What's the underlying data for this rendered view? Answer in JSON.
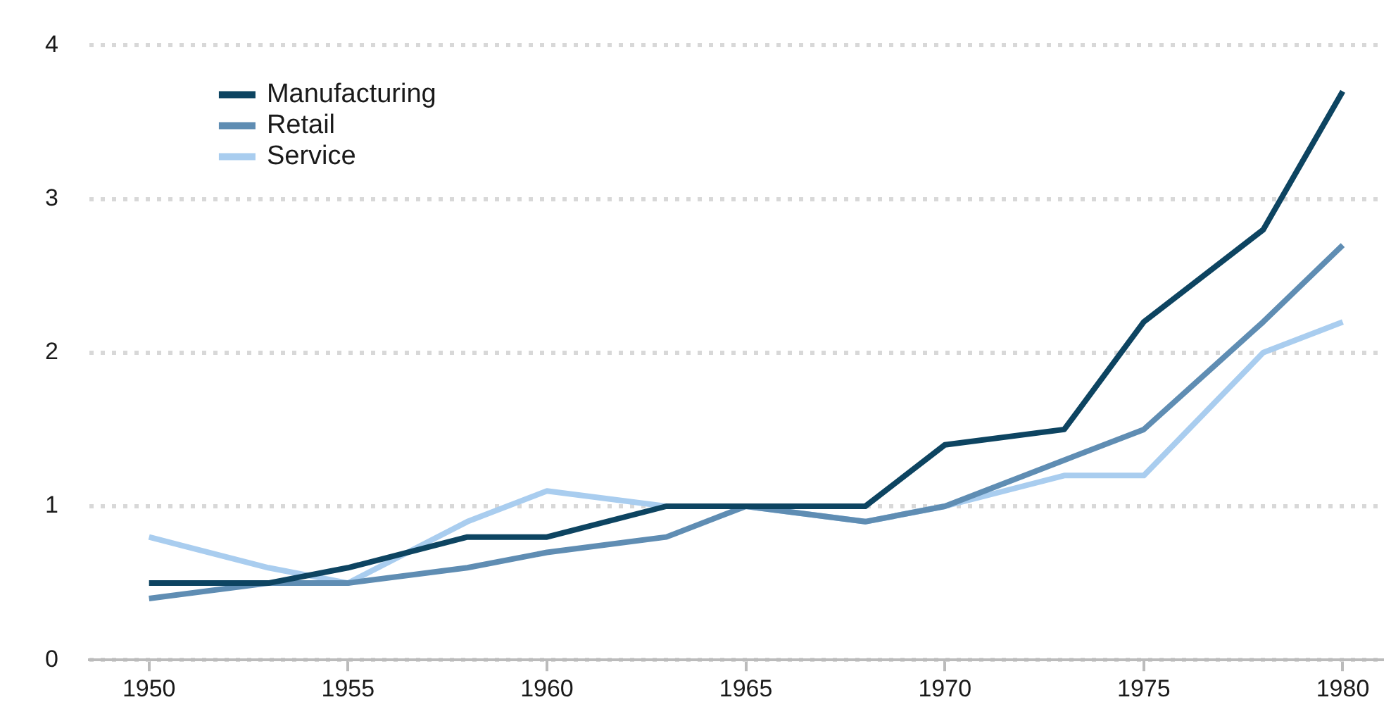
{
  "chart_data": {
    "type": "line",
    "x": [
      1950,
      1953,
      1955,
      1958,
      1960,
      1963,
      1965,
      1968,
      1970,
      1973,
      1975,
      1978,
      1980
    ],
    "series": [
      {
        "name": "Manufacturing",
        "color": "#0d4461",
        "values": [
          0.5,
          0.5,
          0.6,
          0.8,
          0.8,
          1.0,
          1.0,
          1.0,
          1.4,
          1.5,
          2.2,
          2.8,
          3.7
        ]
      },
      {
        "name": "Retail",
        "color": "#5f8db3",
        "values": [
          0.4,
          0.5,
          0.5,
          0.6,
          0.7,
          0.8,
          1.0,
          0.9,
          1.0,
          1.3,
          1.5,
          2.2,
          2.7
        ]
      },
      {
        "name": "Service",
        "color": "#a9cdef",
        "values": [
          0.8,
          0.6,
          0.5,
          0.9,
          1.1,
          1.0,
          1.0,
          0.9,
          1.0,
          1.2,
          1.2,
          2.0,
          2.2
        ]
      }
    ],
    "xlim": [
      1948.5,
      1981
    ],
    "xticks": [
      1950,
      1955,
      1960,
      1965,
      1970,
      1975,
      1980
    ],
    "ylim": [
      0,
      4
    ],
    "yticks": [
      0,
      1,
      2,
      3,
      4
    ],
    "grid": "y",
    "legend": "top left",
    "marker": "none",
    "line_style": "solid"
  }
}
